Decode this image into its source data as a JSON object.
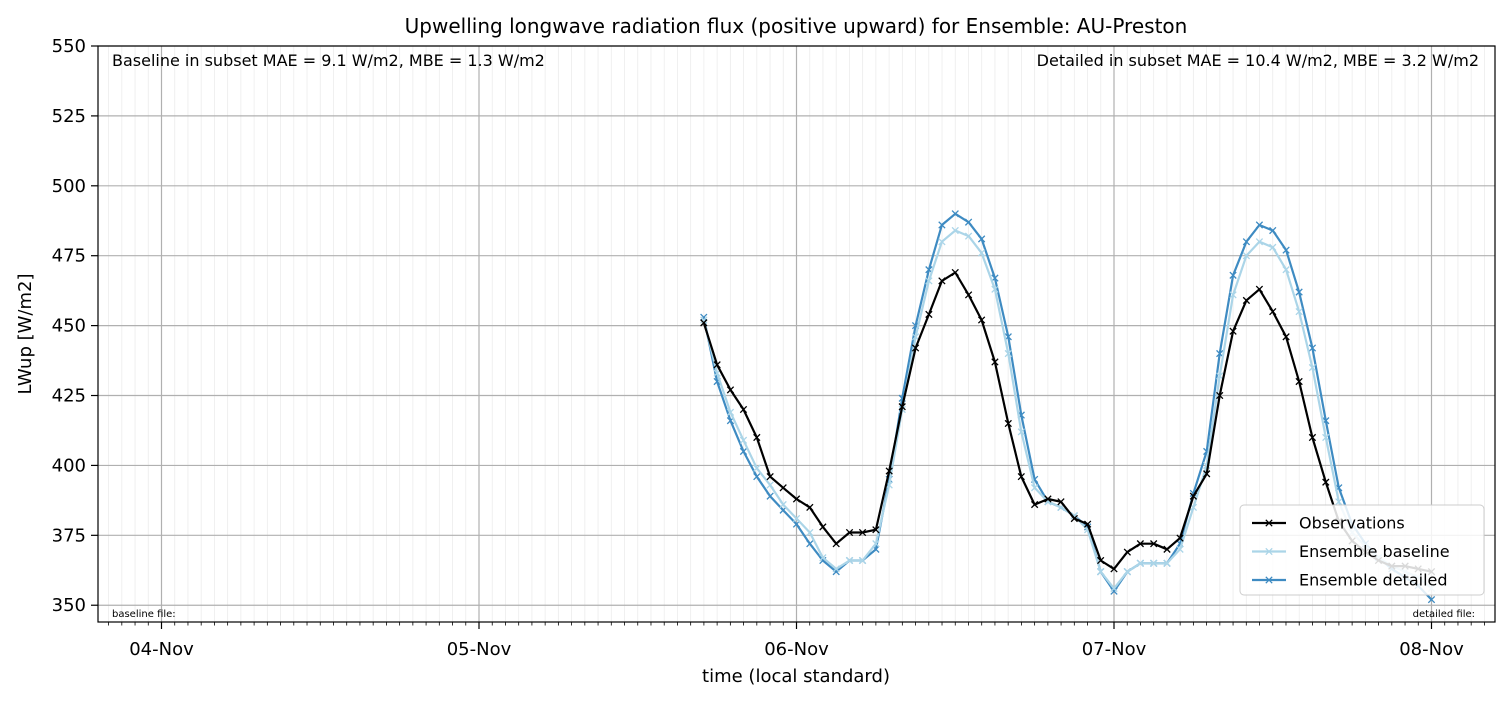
{
  "chart_data": {
    "type": "line",
    "title": "Upwelling longwave radiation flux (positive upward) for Ensemble: AU-Preston",
    "xlabel": "time (local standard)",
    "ylabel": "LWup [W/m2]",
    "xlim": [
      -0.2,
      4.2
    ],
    "ylim": [
      344,
      550
    ],
    "x_tick_values": [
      0,
      1,
      2,
      3,
      4
    ],
    "x_tick_labels": [
      "04-Nov",
      "05-Nov",
      "06-Nov",
      "07-Nov",
      "08-Nov"
    ],
    "y_ticks": [
      350,
      375,
      400,
      425,
      450,
      475,
      500,
      525,
      550
    ],
    "grid": true,
    "legend_position": "lower-right",
    "annotations": {
      "baseline_stats": "Baseline in subset MAE = 9.1 W/m2, MBE = 1.3 W/m2",
      "detailed_stats": "Detailed in subset MAE = 10.4 W/m2, MBE = 3.2 W/m2",
      "baseline_file": "baseline file:",
      "detailed_file": "detailed file:"
    },
    "x_days_since_04Nov": [
      1.708,
      1.75,
      1.792,
      1.833,
      1.875,
      1.917,
      1.958,
      2.0,
      2.042,
      2.083,
      2.125,
      2.167,
      2.208,
      2.25,
      2.292,
      2.333,
      2.375,
      2.417,
      2.458,
      2.5,
      2.542,
      2.583,
      2.625,
      2.667,
      2.708,
      2.75,
      2.792,
      2.833,
      2.875,
      2.917,
      2.958,
      3.0,
      3.042,
      3.083,
      3.125,
      3.167,
      3.208,
      3.25,
      3.292,
      3.333,
      3.375,
      3.417,
      3.458,
      3.5,
      3.542,
      3.583,
      3.625,
      3.667,
      3.708,
      3.75,
      3.792,
      3.833,
      3.875,
      3.917,
      3.958,
      4.0
    ],
    "series": [
      {
        "name": "Observations",
        "color": "#000000",
        "values": [
          451,
          436,
          427,
          420,
          410,
          396,
          392,
          388,
          385,
          378,
          372,
          376,
          376,
          377,
          398,
          421,
          442,
          454,
          466,
          469,
          461,
          452,
          437,
          415,
          396,
          386,
          388,
          387,
          381,
          379,
          366,
          363,
          369,
          372,
          372,
          370,
          374,
          389,
          397,
          425,
          448,
          459,
          463,
          455,
          446,
          430,
          410,
          394,
          380,
          373,
          369,
          366,
          364,
          364,
          363,
          362
        ]
      },
      {
        "name": "Ensemble baseline",
        "color": "#abd5e8",
        "values": [
          452,
          433,
          419,
          409,
          399,
          393,
          386,
          381,
          376,
          367,
          363,
          366,
          366,
          372,
          393,
          420,
          446,
          466,
          480,
          484,
          482,
          476,
          463,
          440,
          412,
          392,
          387,
          385,
          382,
          377,
          362,
          356,
          362,
          365,
          365,
          365,
          370,
          385,
          400,
          432,
          461,
          475,
          480,
          478,
          470,
          455,
          435,
          410,
          387,
          376,
          371,
          367,
          364,
          362,
          360,
          356
        ]
      },
      {
        "name": "Ensemble detailed",
        "color": "#3e8bc2",
        "values": [
          453,
          430,
          416,
          405,
          396,
          389,
          384,
          379,
          372,
          366,
          362,
          366,
          366,
          370,
          395,
          424,
          450,
          470,
          486,
          490,
          487,
          481,
          467,
          446,
          418,
          395,
          387,
          385,
          382,
          378,
          362,
          355,
          362,
          365,
          365,
          365,
          372,
          390,
          405,
          440,
          468,
          480,
          486,
          484,
          477,
          462,
          442,
          416,
          392,
          379,
          372,
          367,
          363,
          360,
          357,
          352
        ]
      }
    ]
  }
}
